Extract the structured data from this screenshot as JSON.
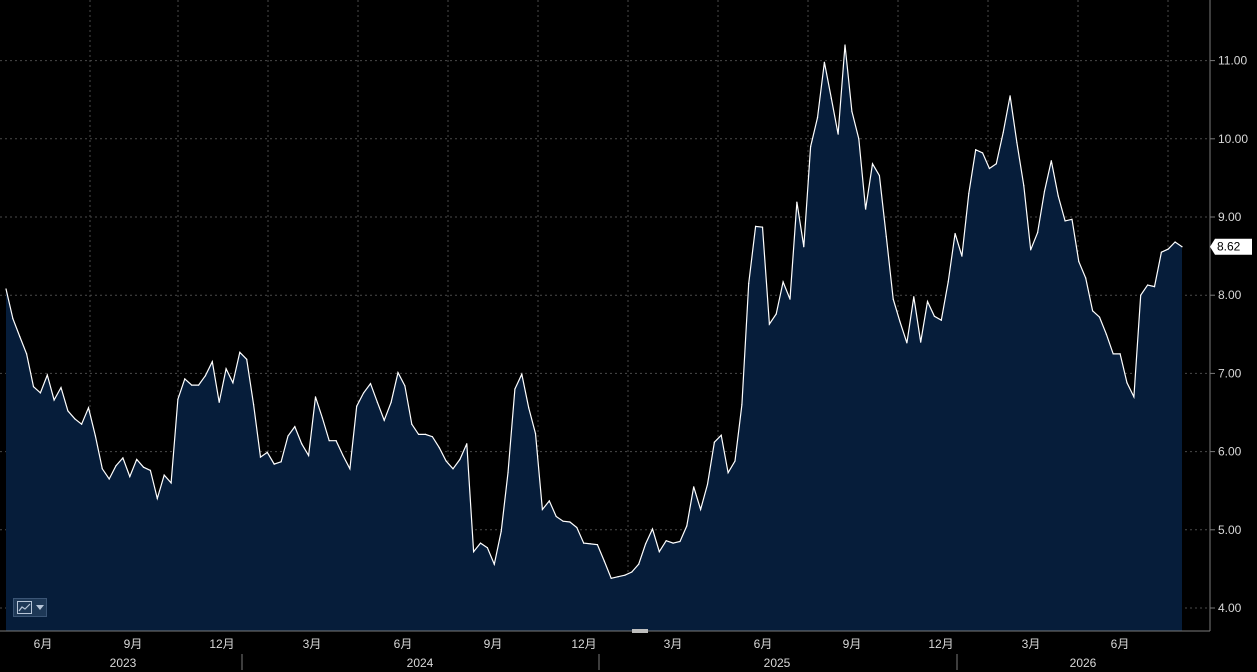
{
  "chart_data": {
    "type": "area",
    "series": [
      {
        "values": [
          8.08,
          7.7,
          7.47,
          7.25,
          6.83,
          6.75,
          6.98,
          6.66,
          6.82,
          6.52,
          6.42,
          6.35,
          6.56,
          6.2,
          5.78,
          5.65,
          5.82,
          5.92,
          5.68,
          5.9,
          5.8,
          5.76,
          5.4,
          5.7,
          5.6,
          6.67,
          6.93,
          6.85,
          6.85,
          6.97,
          7.15,
          6.63,
          7.06,
          6.88,
          7.27,
          7.18,
          6.6,
          5.93,
          5.99,
          5.84,
          5.87,
          6.2,
          6.32,
          6.1,
          5.95,
          6.7,
          6.43,
          6.14,
          6.14,
          5.95,
          5.78,
          6.58,
          6.75,
          6.87,
          6.63,
          6.4,
          6.63,
          7.01,
          6.84,
          6.35,
          6.22,
          6.22,
          6.19,
          6.05,
          5.88,
          5.78,
          5.9,
          6.1,
          4.72,
          4.83,
          4.77,
          4.56,
          4.98,
          5.73,
          6.8,
          6.99,
          6.56,
          6.23,
          5.26,
          5.37,
          5.17,
          5.11,
          5.1,
          5.03,
          4.83,
          4.82,
          4.81,
          4.6,
          4.38,
          4.4,
          4.42,
          4.46,
          4.56,
          4.82,
          5.01,
          4.72,
          4.86,
          4.83,
          4.85,
          5.05,
          5.55,
          5.26,
          5.58,
          6.12,
          6.21,
          5.73,
          5.88,
          6.6,
          8.15,
          8.88,
          8.87,
          7.63,
          7.76,
          8.17,
          7.95,
          9.19,
          8.62,
          9.9,
          10.27,
          10.98,
          10.52,
          10.06,
          11.2,
          10.35,
          10.0,
          9.1,
          9.68,
          9.53,
          8.75,
          7.95,
          7.66,
          7.39,
          7.98,
          7.4,
          7.92,
          7.73,
          7.68,
          8.17,
          8.79,
          8.5,
          9.3,
          9.86,
          9.82,
          9.62,
          9.68,
          10.08,
          10.55,
          9.95,
          9.4,
          8.58,
          8.8,
          9.33,
          9.72,
          9.27,
          8.95,
          8.97,
          8.43,
          8.22,
          7.8,
          7.72,
          7.5,
          7.25,
          7.25,
          6.88,
          6.7,
          8.0,
          8.13,
          8.11,
          8.55,
          8.59,
          8.68,
          8.62
        ]
      }
    ],
    "ylim": [
      3.75,
      11.5
    ],
    "y_ticks": [
      "4.00",
      "5.00",
      "6.00",
      "7.00",
      "8.00",
      "9.00",
      "10.00",
      "11.00"
    ],
    "x_ticks": [
      "6月",
      "9月",
      "12月",
      "3月",
      "6月",
      "9月",
      "12月",
      "3月",
      "6月",
      "9月",
      "12月",
      "3月",
      "6月"
    ],
    "years": [
      "2023",
      "2024",
      "2025",
      "2026"
    ],
    "last_value": "8.62",
    "grid": true,
    "colors": {
      "background": "#000000",
      "area_fill": "#061d3a",
      "line": "#ffffff",
      "grid": "#4a4a4a",
      "axis_text": "#d8d8d8",
      "last_value_bg": "#ffffff"
    }
  },
  "toolbar": {
    "chart_type_icon": "line-chart-icon"
  }
}
